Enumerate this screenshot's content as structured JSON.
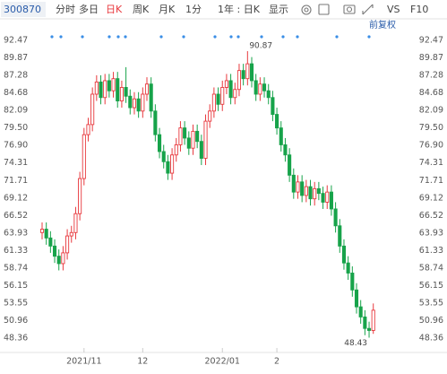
{
  "toolbar": {
    "code": "300870",
    "tabs": [
      "分时",
      "多日",
      "日K",
      "周K",
      "月K",
      "1分",
      "1年 : 日K",
      "显示"
    ],
    "active": 2,
    "right": [
      "VS",
      "F10"
    ]
  },
  "chart_data": {
    "type": "candlestick",
    "adjust": "前复权",
    "categories": [
      null,
      null,
      null,
      null,
      null,
      null,
      null,
      null,
      null,
      null,
      "2021/11",
      null,
      null,
      null,
      null,
      null,
      null,
      null,
      null,
      null,
      null,
      null,
      null,
      null,
      "12",
      null,
      null,
      null,
      null,
      null,
      null,
      null,
      null,
      null,
      null,
      null,
      null,
      null,
      null,
      null,
      null,
      null,
      null,
      "2022/01",
      null,
      null,
      null,
      null,
      null,
      null,
      null,
      null,
      null,
      null,
      null,
      null,
      "2",
      null,
      null,
      null,
      null,
      null,
      null,
      null,
      null,
      null,
      null,
      null,
      null,
      null,
      null,
      null,
      null,
      null,
      null,
      null,
      null,
      null,
      null,
      null
    ],
    "open": [
      64.0,
      64.5,
      63.2,
      62.0,
      60.5,
      59.4,
      61.0,
      63.5,
      64.0,
      66.8,
      72.0,
      78.5,
      80.0,
      84.5,
      86.3,
      84.0,
      86.5,
      85.0,
      86.8,
      83.5,
      85.5,
      84.2,
      82.5,
      83.8,
      82.0,
      84.5,
      86.0,
      82.0,
      78.5,
      76.0,
      74.5,
      72.8,
      75.5,
      77.0,
      79.5,
      78.0,
      76.5,
      79.0,
      77.5,
      75.0,
      80.5,
      82.0,
      84.5,
      83.0,
      85.5,
      86.5,
      84.0,
      85.2,
      88.0,
      86.8,
      89.0,
      86.5,
      84.5,
      86.0,
      85.0,
      84.0,
      81.5,
      79.5,
      77.0,
      75.5,
      72.5,
      70.0,
      71.5,
      69.5,
      70.8,
      69.0,
      70.5,
      69.8,
      68.5,
      70.0,
      67.5,
      65.0,
      62.0,
      59.5,
      58.0,
      55.5,
      53.0,
      51.5,
      49.8,
      49.5
    ],
    "close": [
      64.5,
      63.2,
      62.0,
      60.5,
      59.4,
      61.0,
      63.5,
      64.0,
      66.8,
      72.0,
      78.5,
      80.0,
      84.5,
      86.3,
      84.0,
      86.5,
      85.0,
      86.8,
      83.5,
      85.5,
      84.2,
      82.5,
      83.8,
      82.0,
      84.5,
      86.0,
      82.0,
      78.5,
      76.0,
      74.5,
      72.8,
      75.5,
      77.0,
      79.5,
      78.0,
      76.5,
      79.0,
      77.5,
      75.0,
      80.5,
      82.0,
      84.5,
      83.0,
      85.5,
      86.5,
      84.0,
      85.2,
      88.0,
      86.8,
      89.0,
      86.5,
      84.5,
      86.0,
      85.0,
      84.0,
      81.5,
      79.5,
      77.0,
      75.5,
      72.5,
      70.0,
      71.5,
      69.5,
      70.8,
      69.0,
      70.5,
      69.8,
      68.5,
      70.0,
      67.5,
      65.0,
      62.0,
      59.5,
      58.0,
      55.5,
      53.0,
      51.5,
      49.8,
      49.5,
      52.5
    ],
    "high": [
      65.5,
      65.5,
      64.2,
      63.0,
      61.5,
      62.0,
      64.5,
      65.0,
      67.8,
      73.0,
      79.5,
      81.0,
      85.5,
      87.3,
      87.3,
      87.5,
      87.5,
      87.8,
      87.8,
      86.5,
      88.5,
      85.2,
      84.8,
      84.8,
      85.5,
      87.0,
      87.0,
      83.0,
      79.5,
      77.0,
      75.5,
      76.5,
      78.0,
      80.5,
      80.5,
      79.0,
      80.0,
      80.0,
      78.5,
      81.5,
      83.0,
      85.5,
      85.5,
      86.5,
      87.5,
      87.5,
      86.2,
      89.0,
      89.0,
      90.87,
      90.0,
      87.5,
      87.0,
      87.0,
      86.0,
      85.0,
      82.5,
      80.5,
      78.0,
      76.5,
      73.5,
      72.5,
      72.5,
      71.8,
      71.8,
      71.5,
      71.5,
      70.8,
      71.0,
      71.0,
      68.5,
      66.0,
      63.0,
      60.5,
      59.0,
      56.5,
      54.0,
      52.5,
      50.8,
      53.5
    ],
    "low": [
      63.0,
      62.2,
      61.0,
      59.5,
      58.4,
      58.4,
      60.0,
      62.5,
      63.0,
      65.8,
      71.0,
      77.5,
      79.0,
      83.5,
      83.0,
      83.0,
      84.0,
      84.0,
      82.5,
      82.5,
      83.2,
      81.5,
      81.5,
      81.0,
      81.0,
      83.5,
      81.0,
      77.5,
      75.0,
      73.5,
      71.8,
      71.8,
      74.5,
      76.0,
      77.0,
      75.5,
      75.5,
      76.5,
      74.0,
      74.0,
      79.5,
      81.0,
      82.0,
      82.0,
      84.5,
      83.0,
      83.0,
      84.2,
      85.8,
      85.8,
      85.5,
      83.5,
      83.5,
      84.0,
      83.0,
      80.5,
      78.5,
      76.0,
      74.5,
      71.5,
      69.0,
      69.0,
      68.5,
      68.5,
      68.0,
      68.0,
      68.8,
      67.5,
      67.5,
      66.5,
      64.0,
      61.0,
      58.5,
      57.0,
      54.5,
      52.0,
      50.5,
      48.8,
      48.43,
      49.0
    ],
    "up_color": "#e8383d",
    "down_color": "#17a34a",
    "ylim": [
      46.24,
      93.4
    ],
    "yticks": [
      92.47,
      89.87,
      87.28,
      84.68,
      82.09,
      {
        "value": 79.5,
        "label": "79.50"
      },
      {
        "value": 76.9,
        "label": "76.90"
      },
      74.31,
      71.71,
      69.12,
      66.52,
      63.93,
      61.33,
      58.74,
      56.15,
      53.55,
      50.96,
      48.36
    ],
    "grid": false
  }
}
